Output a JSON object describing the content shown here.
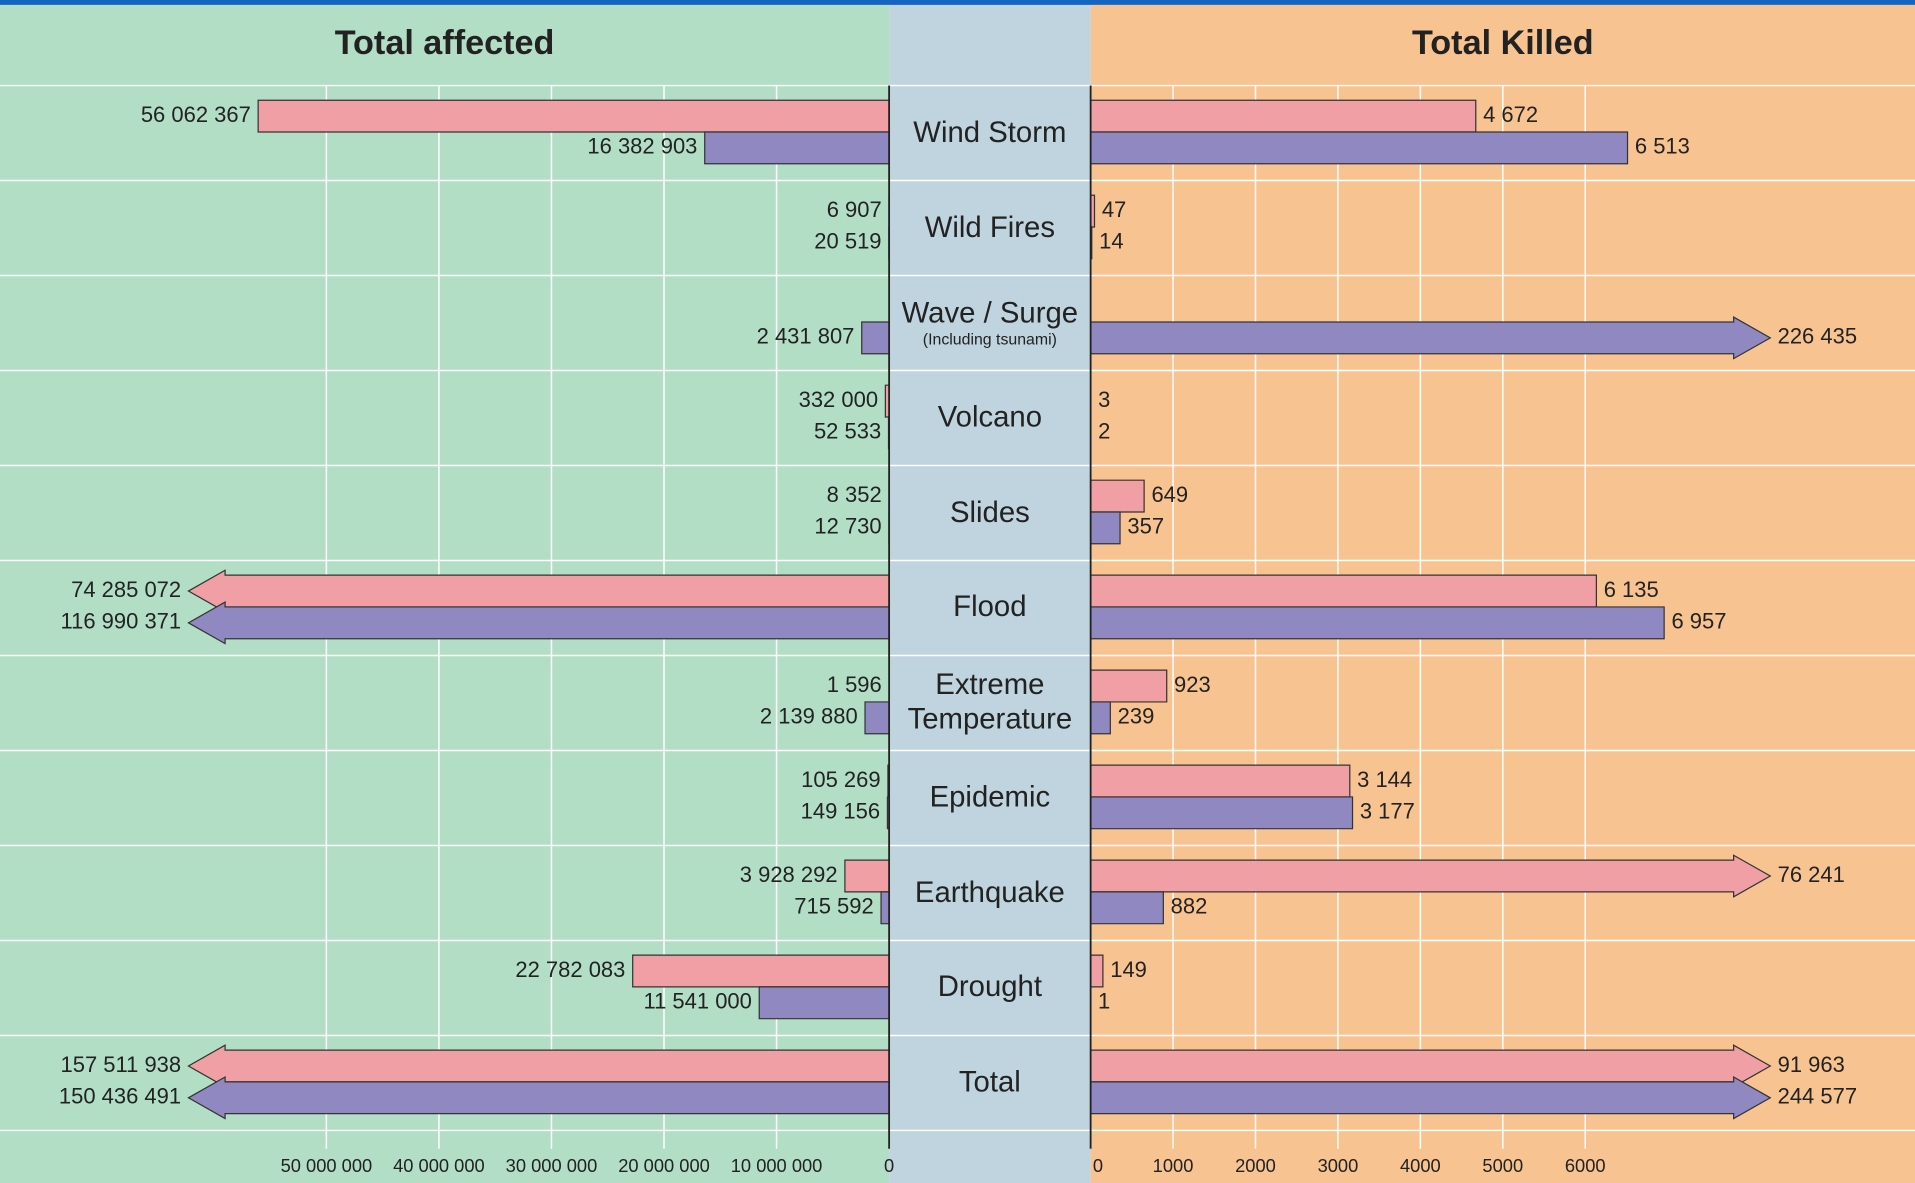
{
  "chart_data": {
    "type": "butterfly",
    "categories": [
      "Wind Storm",
      "Wild Fires",
      "Wave / Surge",
      "Volcano",
      "Slides",
      "Flood",
      "Extreme Temperature",
      "Epidemic",
      "Earthquake",
      "Drought",
      "Total"
    ],
    "category_notes": [
      null,
      null,
      "(Including tsunami)",
      null,
      null,
      null,
      null,
      null,
      null,
      null,
      null
    ],
    "panels": [
      {
        "title": "Total affected",
        "side": "left",
        "background": "#b3dec6",
        "xlim": [
          0,
          79000000
        ],
        "break_at": 59000000,
        "xticks": [
          {
            "value": 50000000,
            "label": "50 000 000"
          },
          {
            "value": 40000000,
            "label": "40 000 000"
          },
          {
            "value": 30000000,
            "label": "30 000 000"
          },
          {
            "value": 20000000,
            "label": "20 000 000"
          },
          {
            "value": 10000000,
            "label": "10 000 000"
          },
          0
        ],
        "grid": true,
        "series": [
          {
            "color": "#f0a0a4",
            "values": [
              56062367,
              6907,
              null,
              332000,
              8352,
              74285072,
              1596,
              105269,
              3928292,
              22782083,
              157511938
            ],
            "value_labels": [
              "56 062 367",
              "6 907",
              null,
              "332 000",
              "8 352",
              "74 285 072",
              "1 596",
              "105 269",
              "3 928 292",
              "22 782 083",
              "157 511 938"
            ]
          },
          {
            "color": "#9088c0",
            "values": [
              16382903,
              20519,
              2431807,
              52533,
              12730,
              116990371,
              2139880,
              149156,
              715592,
              11541000,
              150436491
            ],
            "value_labels": [
              "16 382 903",
              "20 519",
              "2 431 807",
              "52 533",
              "12 730",
              "116 990 371",
              "2 139 880",
              "149 156",
              "715 592",
              "11 541 000",
              "150 436 491"
            ]
          }
        ]
      },
      {
        "title": "Total Killed",
        "side": "right",
        "background": "#f7c491",
        "xlim": [
          0,
          10000
        ],
        "break_at": 7800,
        "xticks": [
          0,
          1000,
          2000,
          3000,
          4000,
          5000,
          6000
        ],
        "grid": true,
        "series": [
          {
            "color": "#f0a0a4",
            "values": [
              4672,
              47,
              null,
              3,
              649,
              6135,
              923,
              3144,
              76241,
              149,
              91963
            ],
            "value_labels": [
              "4 672",
              "47",
              null,
              "3",
              "649",
              "6 135",
              "923",
              "3 144",
              "76 241",
              "149",
              "91 963"
            ]
          },
          {
            "color": "#9088c0",
            "values": [
              6513,
              14,
              226435,
              2,
              357,
              6957,
              239,
              3177,
              882,
              1,
              244577
            ],
            "value_labels": [
              "6 513",
              "14",
              "226 435",
              "2",
              "357",
              "6 957",
              "239",
              "3 177",
              "882",
              "1",
              "244 577"
            ]
          }
        ]
      }
    ]
  }
}
